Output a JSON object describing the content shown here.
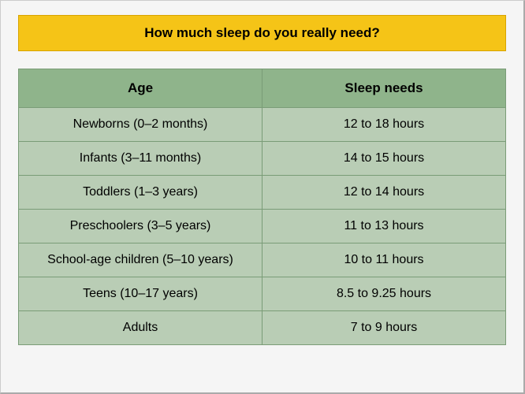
{
  "title": "How much sleep do you really need?",
  "colors": {
    "title_bg": "#f5c417",
    "header_bg": "#8fb48b",
    "cell_bg": "#b9cdb5",
    "border": "#7a9c77",
    "panel_bg": "#f5f5f5"
  },
  "sleep_table": {
    "columns": [
      "Age",
      "Sleep needs"
    ],
    "rows": [
      {
        "age": "Newborns (0–2 months)",
        "need": "12 to 18 hours"
      },
      {
        "age": "Infants (3–11 months)",
        "need": "14 to 15 hours"
      },
      {
        "age": "Toddlers (1–3 years)",
        "need": "12 to 14 hours"
      },
      {
        "age": "Preschoolers (3–5 years)",
        "need": "11 to 13 hours"
      },
      {
        "age": "School-age children (5–10 years)",
        "need": "10 to 11 hours"
      },
      {
        "age": "Teens (10–17 years)",
        "need": "8.5 to 9.25 hours"
      },
      {
        "age": "Adults",
        "need": "7 to 9 hours"
      }
    ]
  }
}
